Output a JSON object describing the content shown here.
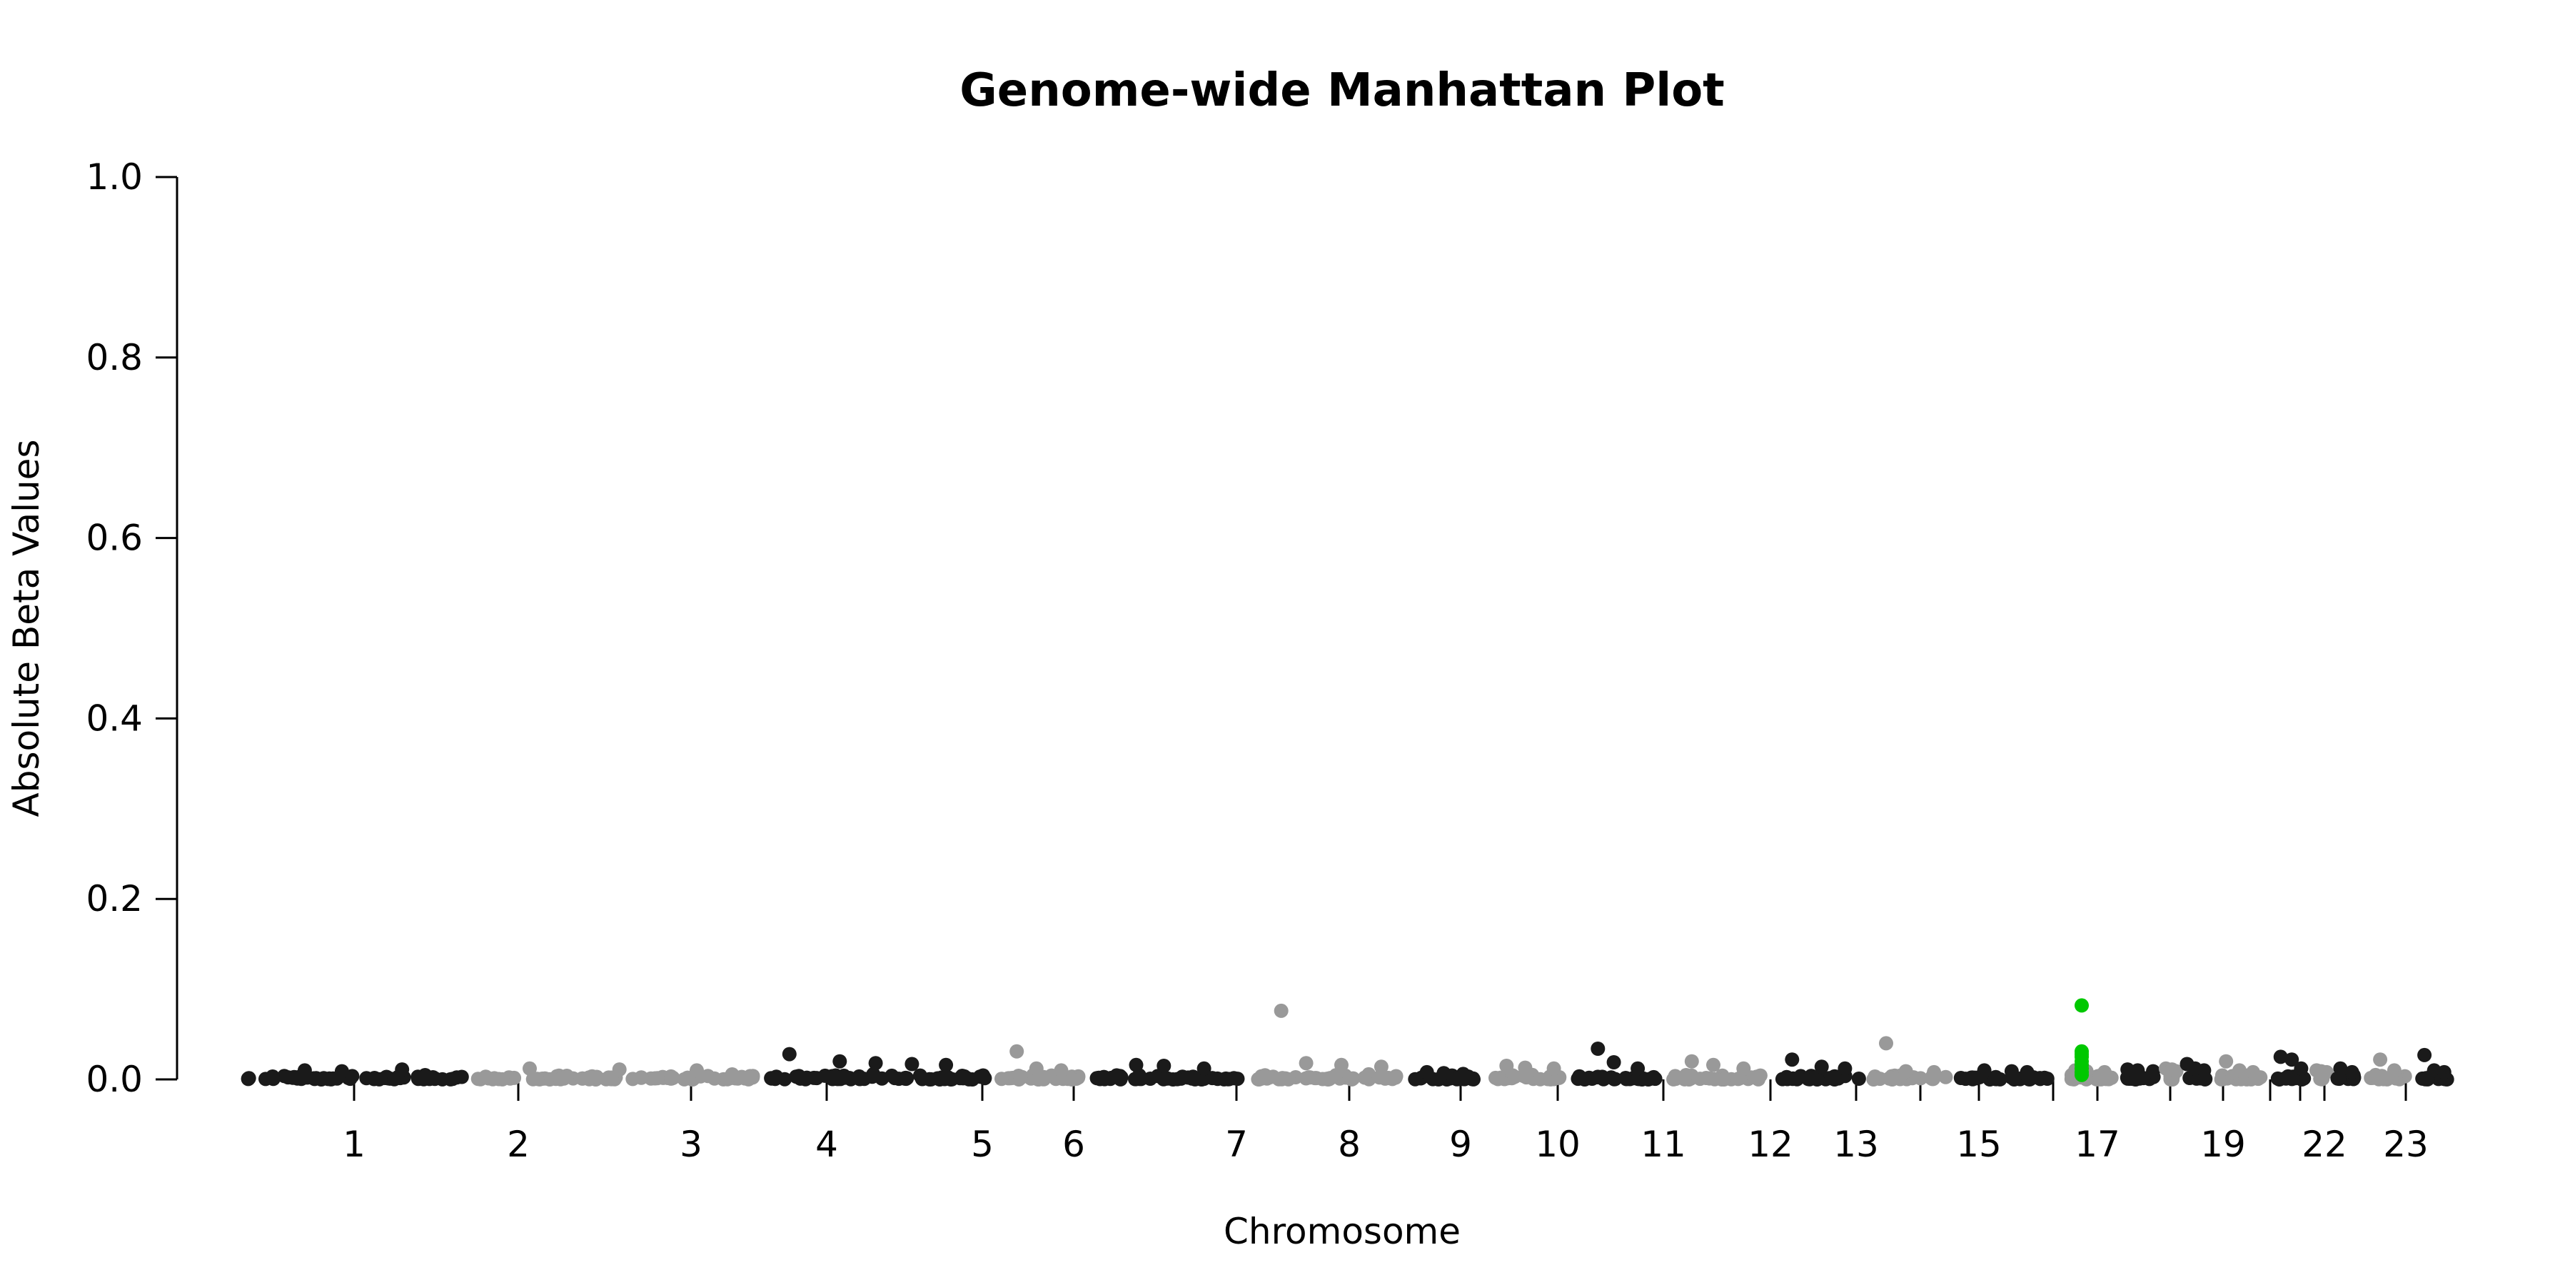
{
  "chart_data": {
    "type": "scatter",
    "title": "Genome-wide Manhattan Plot",
    "xlabel": "Chromosome",
    "ylabel": "Absolute Beta Values",
    "ylim": [
      0,
      1.0
    ],
    "yticks": [
      0.0,
      0.2,
      0.4,
      0.6,
      0.8,
      1.0
    ],
    "ytick_labels": [
      "0.0",
      "0.2",
      "0.4",
      "0.6",
      "0.8",
      "1.0"
    ],
    "grid": false,
    "legend": "none",
    "colors": {
      "odd": "#1a1a1a",
      "even": "#999999",
      "highlight": "#00c800"
    },
    "chromosomes": [
      {
        "chr": "1",
        "label": "1",
        "peaks": [
          0.01,
          0.009,
          0.011
        ]
      },
      {
        "chr": "2",
        "label": "2",
        "peaks": [
          0.012,
          0.011,
          0.01
        ]
      },
      {
        "chr": "3",
        "label": "3",
        "peaks": [
          0.028,
          0.02,
          0.018,
          0.017,
          0.016
        ]
      },
      {
        "chr": "4",
        "label": "4",
        "peaks": [
          0.031,
          0.012,
          0.01
        ]
      },
      {
        "chr": "5",
        "label": "5",
        "peaks": [
          0.016,
          0.015,
          0.012
        ]
      },
      {
        "chr": "6",
        "label": "6",
        "peaks": [
          0.076,
          0.018,
          0.016,
          0.014
        ]
      },
      {
        "chr": "7",
        "label": "7",
        "peaks": [
          0.008,
          0.007,
          0.006
        ]
      },
      {
        "chr": "8",
        "label": "8",
        "peaks": [
          0.015,
          0.013,
          0.012
        ]
      },
      {
        "chr": "9",
        "label": "9",
        "peaks": [
          0.034,
          0.019,
          0.012
        ]
      },
      {
        "chr": "10",
        "label": "10",
        "peaks": [
          0.02,
          0.016,
          0.012
        ]
      },
      {
        "chr": "11",
        "label": "11",
        "peaks": [
          0.022,
          0.014,
          0.012
        ]
      },
      {
        "chr": "12",
        "label": "12",
        "peaks": [
          0.04,
          0.009,
          0.008
        ]
      },
      {
        "chr": "13",
        "label": "13",
        "peaks": [
          0.01,
          0.009,
          0.008
        ]
      },
      {
        "chr": "14",
        "label": "",
        "peaks": [
          0.01,
          0.009,
          0.008
        ]
      },
      {
        "chr": "15",
        "label": "15",
        "peaks": [
          0.011,
          0.01,
          0.009
        ]
      },
      {
        "chr": "16",
        "label": "",
        "peaks": [
          0.012,
          0.011,
          0.009
        ]
      },
      {
        "chr": "17",
        "label": "17",
        "peaks": [
          0.017,
          0.012,
          0.01
        ]
      },
      {
        "chr": "18",
        "label": "",
        "peaks": [
          0.02,
          0.01,
          0.008
        ]
      },
      {
        "chr": "19",
        "label": "19",
        "peaks": [
          0.025,
          0.022,
          0.012
        ]
      },
      {
        "chr": "20",
        "label": "",
        "peaks": [
          0.01,
          0.009,
          0.008
        ]
      },
      {
        "chr": "21",
        "label": "",
        "peaks": [
          0.012,
          0.008
        ]
      },
      {
        "chr": "22",
        "label": "22",
        "peaks": [
          0.022,
          0.01
        ]
      },
      {
        "chr": "23",
        "label": "23",
        "peaks": [
          0.027,
          0.01,
          0.008
        ]
      }
    ],
    "highlight_points": [
      {
        "chr": "17",
        "y": 0.082
      },
      {
        "chr": "17",
        "y": 0.031
      },
      {
        "chr": "17",
        "y": 0.028
      },
      {
        "chr": "17",
        "y": 0.025
      },
      {
        "chr": "17",
        "y": 0.02
      },
      {
        "chr": "17",
        "y": 0.016
      },
      {
        "chr": "17",
        "y": 0.012
      },
      {
        "chr": "17",
        "y": 0.008
      },
      {
        "chr": "17",
        "y": 0.005
      }
    ]
  }
}
